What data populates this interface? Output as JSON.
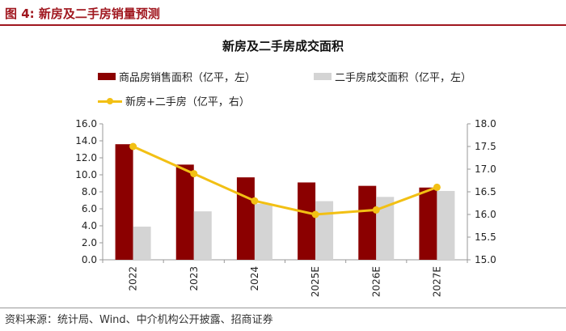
{
  "figure_label": "图 4:  新房及二手房销量预测",
  "source_text": "资料来源：统计局、Wind、中介机构公开披露、招商证券",
  "colors": {
    "accent": "#a0171f",
    "bar_new": "#8b0000",
    "bar_second": "#d4d4d4",
    "line": "#f2c014",
    "axis": "#999999"
  },
  "chart_data": {
    "type": "bar",
    "title": "新房及二手房成交面积",
    "categories": [
      "2022",
      "2023",
      "2024",
      "2025E",
      "2026E",
      "2027E"
    ],
    "series": [
      {
        "name": "商品房销售面积（亿平，左）",
        "type": "bar",
        "axis": "left",
        "values": [
          13.6,
          11.2,
          9.7,
          9.1,
          8.7,
          8.5
        ]
      },
      {
        "name": "二手房成交面积（亿平，左）",
        "type": "bar",
        "axis": "left",
        "values": [
          3.9,
          5.7,
          6.6,
          6.9,
          7.4,
          8.1
        ]
      },
      {
        "name": "新房+二手房（亿平，右）",
        "type": "line",
        "axis": "right",
        "values": [
          17.5,
          16.9,
          16.3,
          16.0,
          16.1,
          16.6
        ]
      }
    ],
    "ylim_left": [
      0,
      16
    ],
    "yticks_left": [
      "0.0",
      "2.0",
      "4.0",
      "6.0",
      "8.0",
      "10.0",
      "12.0",
      "14.0",
      "16.0"
    ],
    "ylim_right": [
      15,
      18
    ],
    "yticks_right": [
      "15.0",
      "15.5",
      "16.0",
      "16.5",
      "17.0",
      "17.5",
      "18.0"
    ],
    "xlabel": "",
    "ylabel": "",
    "grid": false
  }
}
